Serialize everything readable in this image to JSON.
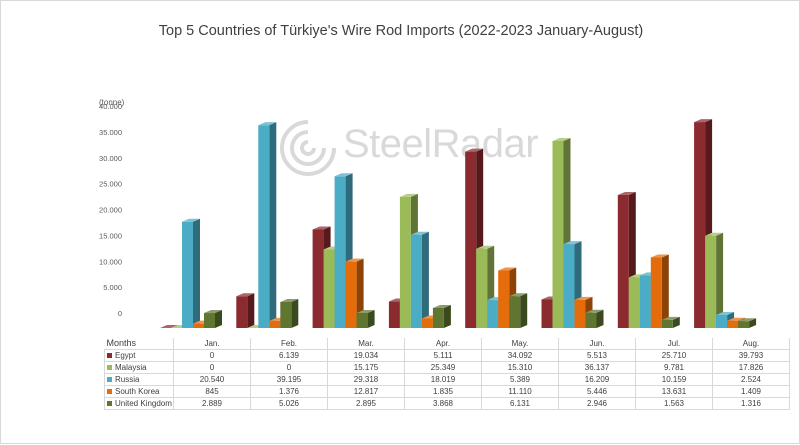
{
  "chart_data": {
    "type": "bar",
    "title": "Top 5 Countries of Türkiye's Wire Rod Imports (2022-2023 January-August)",
    "unit_label": "(tonne)",
    "xlabel": "Months",
    "ylim": [
      0,
      40000
    ],
    "y_ticks": [
      "0",
      "5.000",
      "10.000",
      "15.000",
      "20.000",
      "25.000",
      "30.000",
      "35.000",
      "40.000"
    ],
    "categories": [
      "Jan.",
      "Feb.",
      "Mar.",
      "Apr.",
      "May.",
      "Jun.",
      "Jul.",
      "Aug."
    ],
    "series": [
      {
        "name": "Egypt",
        "color": "#8b2a2f",
        "values": [
          0,
          6139,
          19034,
          5111,
          34092,
          5513,
          25710,
          39793
        ],
        "labels": [
          "0",
          "6.139",
          "19.034",
          "5.111",
          "34.092",
          "5.513",
          "25.710",
          "39.793"
        ]
      },
      {
        "name": "Malaysia",
        "color": "#9bbb59",
        "values": [
          0,
          0,
          15175,
          25349,
          15310,
          36137,
          9781,
          17826
        ],
        "labels": [
          "0",
          "0",
          "15.175",
          "25.349",
          "15.310",
          "36.137",
          "9.781",
          "17.826"
        ]
      },
      {
        "name": "Russia",
        "color": "#4bacc6",
        "values": [
          20540,
          39195,
          29318,
          18019,
          5389,
          16209,
          10159,
          2524
        ],
        "labels": [
          "20.540",
          "39.195",
          "29.318",
          "18.019",
          "5.389",
          "16.209",
          "10.159",
          "2.524"
        ]
      },
      {
        "name": "South Korea",
        "color": "#e46c0a",
        "values": [
          845,
          1376,
          12817,
          1835,
          11110,
          5446,
          13631,
          1409
        ],
        "labels": [
          "845",
          "1.376",
          "12.817",
          "1.835",
          "11.110",
          "5.446",
          "13.631",
          "1.409"
        ]
      },
      {
        "name": "United Kingdom",
        "color": "#5f7530",
        "values": [
          2889,
          5026,
          2895,
          3868,
          6131,
          2946,
          1563,
          1316
        ],
        "labels": [
          "2.889",
          "5.026",
          "2.895",
          "3.868",
          "6.131",
          "2.946",
          "1.563",
          "1.316"
        ]
      }
    ],
    "legend": "data table below chart",
    "grid": false
  },
  "watermark": {
    "text": "SteelRadar",
    "icon": "steelradar-logo-icon"
  }
}
